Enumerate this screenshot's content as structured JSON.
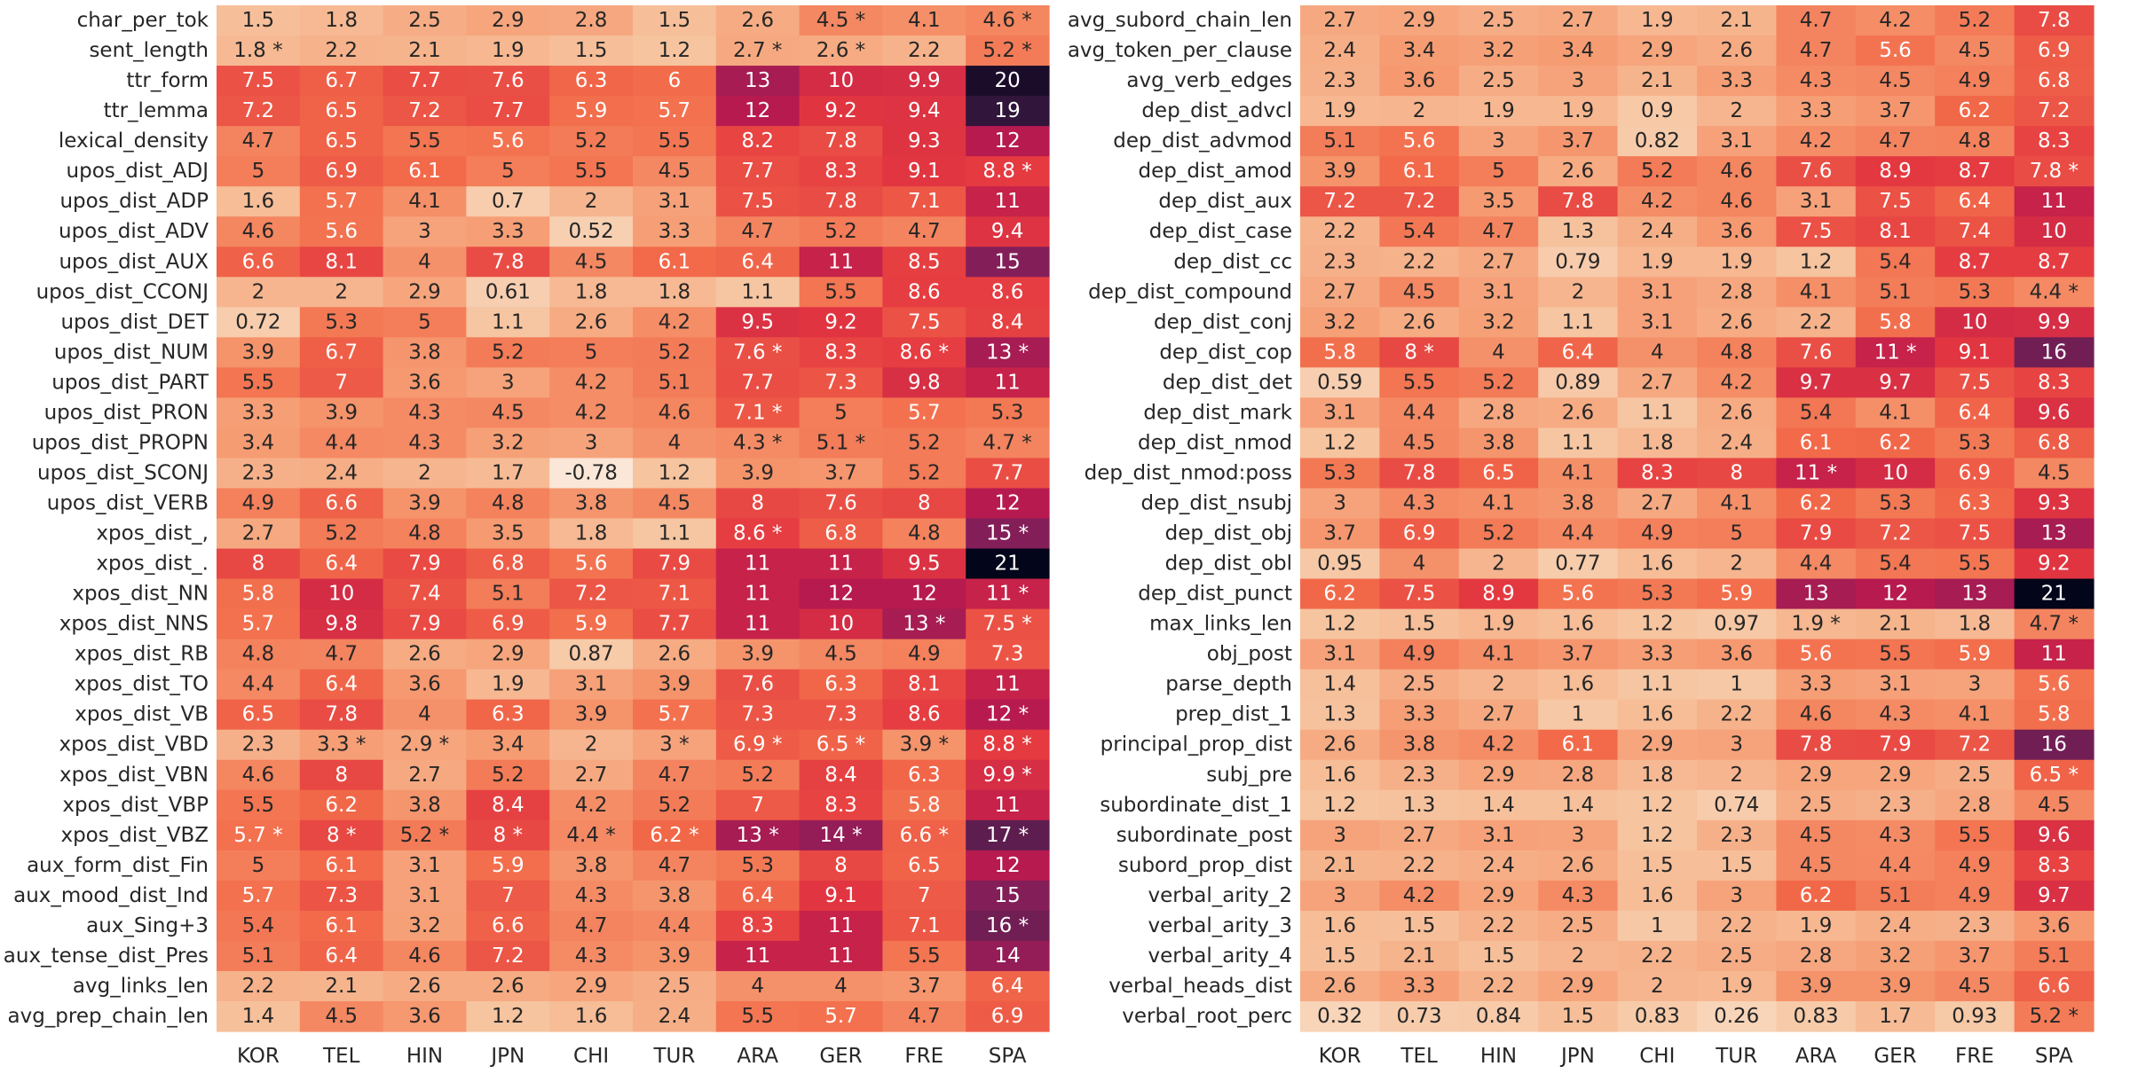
{
  "chart_data": [
    {
      "type": "heatmap",
      "title": "",
      "xlabel": "",
      "ylabel": "",
      "colormap": "rocket",
      "color_range": [
        -1,
        21
      ],
      "columns": [
        "KOR",
        "TEL",
        "HIN",
        "JPN",
        "CHI",
        "TUR",
        "ARA",
        "GER",
        "FRE",
        "SPA"
      ],
      "rows": [
        {
          "label": "char_per_tok",
          "cells": [
            "1.5",
            "1.8",
            "2.5",
            "2.9",
            "2.8",
            "1.5",
            "2.6",
            "4.5 *",
            "4.1",
            "4.6 *"
          ]
        },
        {
          "label": "sent_length",
          "cells": [
            "1.8 *",
            "2.2",
            "2.1",
            "1.9",
            "1.5",
            "1.2",
            "2.7 *",
            "2.6 *",
            "2.2",
            "5.2 *"
          ]
        },
        {
          "label": "ttr_form",
          "cells": [
            "7.5",
            "6.7",
            "7.7",
            "7.6",
            "6.3",
            "6",
            "13",
            "10",
            "9.9",
            "20"
          ]
        },
        {
          "label": "ttr_lemma",
          "cells": [
            "7.2",
            "6.5",
            "7.2",
            "7.7",
            "5.9",
            "5.7",
            "12",
            "9.2",
            "9.4",
            "19"
          ]
        },
        {
          "label": "lexical_density",
          "cells": [
            "4.7",
            "6.5",
            "5.5",
            "5.6",
            "5.2",
            "5.5",
            "8.2",
            "7.8",
            "9.3",
            "12"
          ]
        },
        {
          "label": "upos_dist_ADJ",
          "cells": [
            "5",
            "6.9",
            "6.1",
            "5",
            "5.5",
            "4.5",
            "7.7",
            "8.3",
            "9.1",
            "8.8 *"
          ]
        },
        {
          "label": "upos_dist_ADP",
          "cells": [
            "1.6",
            "5.7",
            "4.1",
            "0.7",
            "2",
            "3.1",
            "7.5",
            "7.8",
            "7.1",
            "11"
          ]
        },
        {
          "label": "upos_dist_ADV",
          "cells": [
            "4.6",
            "5.6",
            "3",
            "3.3",
            "0.52",
            "3.3",
            "4.7",
            "5.2",
            "4.7",
            "9.4"
          ]
        },
        {
          "label": "upos_dist_AUX",
          "cells": [
            "6.6",
            "8.1",
            "4",
            "7.8",
            "4.5",
            "6.1",
            "6.4",
            "11",
            "8.5",
            "15"
          ]
        },
        {
          "label": "upos_dist_CCONJ",
          "cells": [
            "2",
            "2",
            "2.9",
            "0.61",
            "1.8",
            "1.8",
            "1.1",
            "5.5",
            "8.6",
            "8.6"
          ]
        },
        {
          "label": "upos_dist_DET",
          "cells": [
            "0.72",
            "5.3",
            "5",
            "1.1",
            "2.6",
            "4.2",
            "9.5",
            "9.2",
            "7.5",
            "8.4"
          ]
        },
        {
          "label": "upos_dist_NUM",
          "cells": [
            "3.9",
            "6.7",
            "3.8",
            "5.2",
            "5",
            "5.2",
            "7.6 *",
            "8.3",
            "8.6 *",
            "13 *"
          ]
        },
        {
          "label": "upos_dist_PART",
          "cells": [
            "5.5",
            "7",
            "3.6",
            "3",
            "4.2",
            "5.1",
            "7.7",
            "7.3",
            "9.8",
            "11"
          ]
        },
        {
          "label": "upos_dist_PRON",
          "cells": [
            "3.3",
            "3.9",
            "4.3",
            "4.5",
            "4.2",
            "4.6",
            "7.1 *",
            "5",
            "5.7",
            "5.3"
          ]
        },
        {
          "label": "upos_dist_PROPN",
          "cells": [
            "3.4",
            "4.4",
            "4.3",
            "3.2",
            "3",
            "4",
            "4.3 *",
            "5.1 *",
            "5.2",
            "4.7 *"
          ]
        },
        {
          "label": "upos_dist_SCONJ",
          "cells": [
            "2.3",
            "2.4",
            "2",
            "1.7",
            "-0.78",
            "1.2",
            "3.9",
            "3.7",
            "5.2",
            "7.7"
          ]
        },
        {
          "label": "upos_dist_VERB",
          "cells": [
            "4.9",
            "6.6",
            "3.9",
            "4.8",
            "3.8",
            "4.5",
            "8",
            "7.6",
            "8",
            "12"
          ]
        },
        {
          "label": "xpos_dist_,",
          "cells": [
            "2.7",
            "5.2",
            "4.8",
            "3.5",
            "1.8",
            "1.1",
            "8.6 *",
            "6.8",
            "4.8",
            "15 *"
          ]
        },
        {
          "label": "xpos_dist_.",
          "cells": [
            "8",
            "6.4",
            "7.9",
            "6.8",
            "5.6",
            "7.9",
            "11",
            "11",
            "9.5",
            "21"
          ]
        },
        {
          "label": "xpos_dist_NN",
          "cells": [
            "5.8",
            "10",
            "7.4",
            "5.1",
            "7.2",
            "7.1",
            "11",
            "12",
            "12",
            "11 *"
          ]
        },
        {
          "label": "xpos_dist_NNS",
          "cells": [
            "5.7",
            "9.8",
            "7.9",
            "6.9",
            "5.9",
            "7.7",
            "11",
            "10",
            "13 *",
            "7.5 *"
          ]
        },
        {
          "label": "xpos_dist_RB",
          "cells": [
            "4.8",
            "4.7",
            "2.6",
            "2.9",
            "0.87",
            "2.6",
            "3.9",
            "4.5",
            "4.9",
            "7.3"
          ]
        },
        {
          "label": "xpos_dist_TO",
          "cells": [
            "4.4",
            "6.4",
            "3.6",
            "1.9",
            "3.1",
            "3.9",
            "7.6",
            "6.3",
            "8.1",
            "11"
          ]
        },
        {
          "label": "xpos_dist_VB",
          "cells": [
            "6.5",
            "7.8",
            "4",
            "6.3",
            "3.9",
            "5.7",
            "7.3",
            "7.3",
            "8.6",
            "12 *"
          ]
        },
        {
          "label": "xpos_dist_VBD",
          "cells": [
            "2.3",
            "3.3 *",
            "2.9 *",
            "3.4",
            "2",
            "3 *",
            "6.9 *",
            "6.5 *",
            "3.9 *",
            "8.8 *"
          ]
        },
        {
          "label": "xpos_dist_VBN",
          "cells": [
            "4.6",
            "8",
            "2.7",
            "5.2",
            "2.7",
            "4.7",
            "5.2",
            "8.4",
            "6.3",
            "9.9 *"
          ]
        },
        {
          "label": "xpos_dist_VBP",
          "cells": [
            "5.5",
            "6.2",
            "3.8",
            "8.4",
            "4.2",
            "5.2",
            "7",
            "8.3",
            "5.8",
            "11"
          ]
        },
        {
          "label": "xpos_dist_VBZ",
          "cells": [
            "5.7 *",
            "8 *",
            "5.2 *",
            "8 *",
            "4.4 *",
            "6.2 *",
            "13 *",
            "14 *",
            "6.6 *",
            "17 *"
          ]
        },
        {
          "label": "aux_form_dist_Fin",
          "cells": [
            "5",
            "6.1",
            "3.1",
            "5.9",
            "3.8",
            "4.7",
            "5.3",
            "8",
            "6.5",
            "12"
          ]
        },
        {
          "label": "aux_mood_dist_Ind",
          "cells": [
            "5.7",
            "7.3",
            "3.1",
            "7",
            "4.3",
            "3.8",
            "6.4",
            "9.1",
            "7",
            "15"
          ]
        },
        {
          "label": "aux_Sing+3",
          "cells": [
            "5.4",
            "6.1",
            "3.2",
            "6.6",
            "4.7",
            "4.4",
            "8.3",
            "11",
            "7.1",
            "16 *"
          ]
        },
        {
          "label": "aux_tense_dist_Pres",
          "cells": [
            "5.1",
            "6.4",
            "4.6",
            "7.2",
            "4.3",
            "3.9",
            "11",
            "11",
            "5.5",
            "14"
          ]
        },
        {
          "label": "avg_links_len",
          "cells": [
            "2.2",
            "2.1",
            "2.6",
            "2.6",
            "2.9",
            "2.5",
            "4",
            "4",
            "3.7",
            "6.4"
          ]
        },
        {
          "label": "avg_prep_chain_len",
          "cells": [
            "1.4",
            "4.5",
            "3.6",
            "1.2",
            "1.6",
            "2.4",
            "5.5",
            "5.7",
            "4.7",
            "6.9"
          ]
        }
      ]
    },
    {
      "type": "heatmap",
      "title": "",
      "xlabel": "",
      "ylabel": "",
      "colormap": "rocket",
      "color_range": [
        -1,
        21
      ],
      "columns": [
        "KOR",
        "TEL",
        "HIN",
        "JPN",
        "CHI",
        "TUR",
        "ARA",
        "GER",
        "FRE",
        "SPA"
      ],
      "rows": [
        {
          "label": "avg_subord_chain_len",
          "cells": [
            "2.7",
            "2.9",
            "2.5",
            "2.7",
            "1.9",
            "2.1",
            "4.7",
            "4.2",
            "5.2",
            "7.8"
          ]
        },
        {
          "label": "avg_token_per_clause",
          "cells": [
            "2.4",
            "3.4",
            "3.2",
            "3.4",
            "2.9",
            "2.6",
            "4.7",
            "5.6",
            "4.5",
            "6.9"
          ]
        },
        {
          "label": "avg_verb_edges",
          "cells": [
            "2.3",
            "3.6",
            "2.5",
            "3",
            "2.1",
            "3.3",
            "4.3",
            "4.5",
            "4.9",
            "6.8"
          ]
        },
        {
          "label": "dep_dist_advcl",
          "cells": [
            "1.9",
            "2",
            "1.9",
            "1.9",
            "0.9",
            "2",
            "3.3",
            "3.7",
            "6.2",
            "7.2"
          ]
        },
        {
          "label": "dep_dist_advmod",
          "cells": [
            "5.1",
            "5.6",
            "3",
            "3.7",
            "0.82",
            "3.1",
            "4.2",
            "4.7",
            "4.8",
            "8.3"
          ]
        },
        {
          "label": "dep_dist_amod",
          "cells": [
            "3.9",
            "6.1",
            "5",
            "2.6",
            "5.2",
            "4.6",
            "7.6",
            "8.9",
            "8.7",
            "7.8 *"
          ]
        },
        {
          "label": "dep_dist_aux",
          "cells": [
            "7.2",
            "7.2",
            "3.5",
            "7.8",
            "4.2",
            "4.6",
            "3.1",
            "7.5",
            "6.4",
            "11"
          ]
        },
        {
          "label": "dep_dist_case",
          "cells": [
            "2.2",
            "5.4",
            "4.7",
            "1.3",
            "2.4",
            "3.6",
            "7.5",
            "8.1",
            "7.4",
            "10"
          ]
        },
        {
          "label": "dep_dist_cc",
          "cells": [
            "2.3",
            "2.2",
            "2.7",
            "0.79",
            "1.9",
            "1.9",
            "1.2",
            "5.4",
            "8.7",
            "8.7"
          ]
        },
        {
          "label": "dep_dist_compound",
          "cells": [
            "2.7",
            "4.5",
            "3.1",
            "2",
            "3.1",
            "2.8",
            "4.1",
            "5.1",
            "5.3",
            "4.4 *"
          ]
        },
        {
          "label": "dep_dist_conj",
          "cells": [
            "3.2",
            "2.6",
            "3.2",
            "1.1",
            "3.1",
            "2.6",
            "2.2",
            "5.8",
            "10",
            "9.9"
          ]
        },
        {
          "label": "dep_dist_cop",
          "cells": [
            "5.8",
            "8 *",
            "4",
            "6.4",
            "4",
            "4.8",
            "7.6",
            "11 *",
            "9.1",
            "16"
          ]
        },
        {
          "label": "dep_dist_det",
          "cells": [
            "0.59",
            "5.5",
            "5.2",
            "0.89",
            "2.7",
            "4.2",
            "9.7",
            "9.7",
            "7.5",
            "8.3"
          ]
        },
        {
          "label": "dep_dist_mark",
          "cells": [
            "3.1",
            "4.4",
            "2.8",
            "2.6",
            "1.1",
            "2.6",
            "5.4",
            "4.1",
            "6.4",
            "9.6"
          ]
        },
        {
          "label": "dep_dist_nmod",
          "cells": [
            "1.2",
            "4.5",
            "3.8",
            "1.1",
            "1.8",
            "2.4",
            "6.1",
            "6.2",
            "5.3",
            "6.8"
          ]
        },
        {
          "label": "dep_dist_nmod:poss",
          "cells": [
            "5.3",
            "7.8",
            "6.5",
            "4.1",
            "8.3",
            "8",
            "11 *",
            "10",
            "6.9",
            "4.5"
          ]
        },
        {
          "label": "dep_dist_nsubj",
          "cells": [
            "3",
            "4.3",
            "4.1",
            "3.8",
            "2.7",
            "4.1",
            "6.2",
            "5.3",
            "6.3",
            "9.3"
          ]
        },
        {
          "label": "dep_dist_obj",
          "cells": [
            "3.7",
            "6.9",
            "5.2",
            "4.4",
            "4.9",
            "5",
            "7.9",
            "7.2",
            "7.5",
            "13"
          ]
        },
        {
          "label": "dep_dist_obl",
          "cells": [
            "0.95",
            "4",
            "2",
            "0.77",
            "1.6",
            "2",
            "4.4",
            "5.4",
            "5.5",
            "9.2"
          ]
        },
        {
          "label": "dep_dist_punct",
          "cells": [
            "6.2",
            "7.5",
            "8.9",
            "5.6",
            "5.3",
            "5.9",
            "13",
            "12",
            "13",
            "21"
          ]
        },
        {
          "label": "max_links_len",
          "cells": [
            "1.2",
            "1.5",
            "1.9",
            "1.6",
            "1.2",
            "0.97",
            "1.9 *",
            "2.1",
            "1.8",
            "4.7 *"
          ]
        },
        {
          "label": "obj_post",
          "cells": [
            "3.1",
            "4.9",
            "4.1",
            "3.7",
            "3.3",
            "3.6",
            "5.6",
            "5.5",
            "5.9",
            "11"
          ]
        },
        {
          "label": "parse_depth",
          "cells": [
            "1.4",
            "2.5",
            "2",
            "1.6",
            "1.1",
            "1",
            "3.3",
            "3.1",
            "3",
            "5.6"
          ]
        },
        {
          "label": "prep_dist_1",
          "cells": [
            "1.3",
            "3.3",
            "2.7",
            "1",
            "1.6",
            "2.2",
            "4.6",
            "4.3",
            "4.1",
            "5.8"
          ]
        },
        {
          "label": "principal_prop_dist",
          "cells": [
            "2.6",
            "3.8",
            "4.2",
            "6.1",
            "2.9",
            "3",
            "7.8",
            "7.9",
            "7.2",
            "16"
          ]
        },
        {
          "label": "subj_pre",
          "cells": [
            "1.6",
            "2.3",
            "2.9",
            "2.8",
            "1.8",
            "2",
            "2.9",
            "2.9",
            "2.5",
            "6.5 *"
          ]
        },
        {
          "label": "subordinate_dist_1",
          "cells": [
            "1.2",
            "1.3",
            "1.4",
            "1.4",
            "1.2",
            "0.74",
            "2.5",
            "2.3",
            "2.8",
            "4.5"
          ]
        },
        {
          "label": "subordinate_post",
          "cells": [
            "3",
            "2.7",
            "3.1",
            "3",
            "1.2",
            "2.3",
            "4.5",
            "4.3",
            "5.5",
            "9.6"
          ]
        },
        {
          "label": "subord_prop_dist",
          "cells": [
            "2.1",
            "2.2",
            "2.4",
            "2.6",
            "1.5",
            "1.5",
            "4.5",
            "4.4",
            "4.9",
            "8.3"
          ]
        },
        {
          "label": "verbal_arity_2",
          "cells": [
            "3",
            "4.2",
            "2.9",
            "4.3",
            "1.6",
            "3",
            "6.2",
            "5.1",
            "4.9",
            "9.7"
          ]
        },
        {
          "label": "verbal_arity_3",
          "cells": [
            "1.6",
            "1.5",
            "2.2",
            "2.5",
            "1",
            "2.2",
            "1.9",
            "2.4",
            "2.3",
            "3.6"
          ]
        },
        {
          "label": "verbal_arity_4",
          "cells": [
            "1.5",
            "2.1",
            "1.5",
            "2",
            "2.2",
            "2.5",
            "2.8",
            "3.2",
            "3.7",
            "5.1"
          ]
        },
        {
          "label": "verbal_heads_dist",
          "cells": [
            "2.6",
            "3.3",
            "2.2",
            "2.9",
            "2",
            "1.9",
            "3.9",
            "3.9",
            "4.5",
            "6.6"
          ]
        },
        {
          "label": "verbal_root_perc",
          "cells": [
            "0.32",
            "0.73",
            "0.84",
            "1.5",
            "0.83",
            "0.26",
            "0.83",
            "1.7",
            "0.93",
            "5.2 *"
          ]
        }
      ]
    }
  ]
}
